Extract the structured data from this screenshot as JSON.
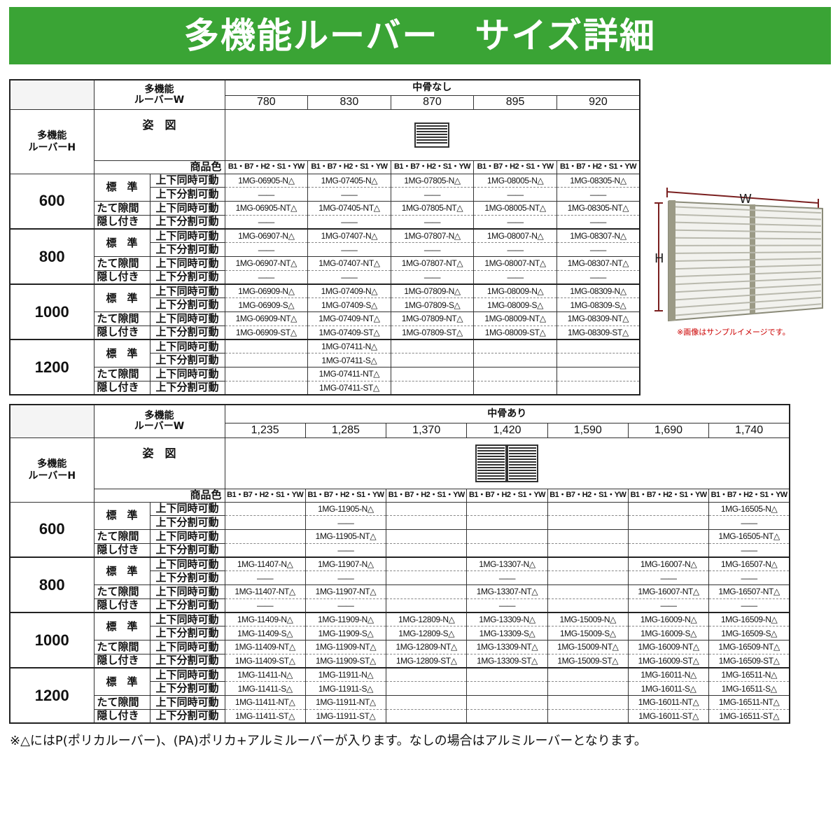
{
  "header": {
    "title": "多機能ルーバー　サイズ詳細"
  },
  "tables": [
    {
      "corner_w": [
        "多機能",
        "ルーバーW"
      ],
      "corner_h": [
        "多機能",
        "ルーバーH"
      ],
      "group": "中骨なし",
      "widths": [
        "780",
        "830",
        "870",
        "895",
        "920"
      ],
      "figure_label": "姿　図",
      "color_label": "商品色",
      "colors": [
        "B1・B7・H2・S1・YW",
        "B1・B7・H2・S1・YW",
        "B1・B7・H2・S1・YW",
        "B1・B7・H2・S1・YW",
        "B1・B7・H2・S1・YW"
      ],
      "sections": [
        {
          "height": "600",
          "labels": [
            "標　準",
            "たて隙間",
            "隠し付き"
          ],
          "ops": [
            "上下同時可動",
            "上下分割可動",
            "上下同時可動",
            "上下分割可動"
          ],
          "rows": [
            [
              "1MG-06905-N△",
              "1MG-07405-N△",
              "1MG-07805-N△",
              "1MG-08005-N△",
              "1MG-08305-N△"
            ],
            [
              "——",
              "——",
              "——",
              "——",
              "——"
            ],
            [
              "1MG-06905-NT△",
              "1MG-07405-NT△",
              "1MG-07805-NT△",
              "1MG-08005-NT△",
              "1MG-08305-NT△"
            ],
            [
              "——",
              "——",
              "——",
              "——",
              "——"
            ]
          ]
        },
        {
          "height": "800",
          "labels": [
            "標　準",
            "たて隙間",
            "隠し付き"
          ],
          "ops": [
            "上下同時可動",
            "上下分割可動",
            "上下同時可動",
            "上下分割可動"
          ],
          "rows": [
            [
              "1MG-06907-N△",
              "1MG-07407-N△",
              "1MG-07807-N△",
              "1MG-08007-N△",
              "1MG-08307-N△"
            ],
            [
              "——",
              "——",
              "——",
              "——",
              "——"
            ],
            [
              "1MG-06907-NT△",
              "1MG-07407-NT△",
              "1MG-07807-NT△",
              "1MG-08007-NT△",
              "1MG-08307-NT△"
            ],
            [
              "——",
              "——",
              "——",
              "——",
              "——"
            ]
          ]
        },
        {
          "height": "1000",
          "labels": [
            "標　準",
            "たて隙間",
            "隠し付き"
          ],
          "ops": [
            "上下同時可動",
            "上下分割可動",
            "上下同時可動",
            "上下分割可動"
          ],
          "rows": [
            [
              "1MG-06909-N△",
              "1MG-07409-N△",
              "1MG-07809-N△",
              "1MG-08009-N△",
              "1MG-08309-N△"
            ],
            [
              "1MG-06909-S△",
              "1MG-07409-S△",
              "1MG-07809-S△",
              "1MG-08009-S△",
              "1MG-08309-S△"
            ],
            [
              "1MG-06909-NT△",
              "1MG-07409-NT△",
              "1MG-07809-NT△",
              "1MG-08009-NT△",
              "1MG-08309-NT△"
            ],
            [
              "1MG-06909-ST△",
              "1MG-07409-ST△",
              "1MG-07809-ST△",
              "1MG-08009-ST△",
              "1MG-08309-ST△"
            ]
          ]
        },
        {
          "height": "1200",
          "labels": [
            "標　準",
            "たて隙間",
            "隠し付き"
          ],
          "ops": [
            "上下同時可動",
            "上下分割可動",
            "上下同時可動",
            "上下分割可動"
          ],
          "rows": [
            [
              null,
              "1MG-07411-N△",
              null,
              null,
              null
            ],
            [
              null,
              "1MG-07411-S△",
              null,
              null,
              null
            ],
            [
              null,
              "1MG-07411-NT△",
              null,
              null,
              null
            ],
            [
              null,
              "1MG-07411-ST△",
              null,
              null,
              null
            ]
          ]
        }
      ]
    },
    {
      "corner_w": [
        "多機能",
        "ルーバーW"
      ],
      "corner_h": [
        "多機能",
        "ルーバーH"
      ],
      "group": "中骨あり",
      "widths": [
        "1,235",
        "1,285",
        "1,370",
        "1,420",
        "1,590",
        "1,690",
        "1,740"
      ],
      "figure_label": "姿　図",
      "color_label": "商品色",
      "colors": [
        "B1・B7・H2・S1・YW",
        "B1・B7・H2・S1・YW",
        "B1・B7・H2・S1・YW",
        "B1・B7・H2・S1・YW",
        "B1・B7・H2・S1・YW",
        "B1・B7・H2・S1・YW",
        "B1・B7・H2・S1・YW"
      ],
      "sections": [
        {
          "height": "600",
          "labels": [
            "標　準",
            "たて隙間",
            "隠し付き"
          ],
          "ops": [
            "上下同時可動",
            "上下分割可動",
            "上下同時可動",
            "上下分割可動"
          ],
          "rows": [
            [
              null,
              "1MG-11905-N△",
              null,
              null,
              null,
              null,
              "1MG-16505-N△"
            ],
            [
              null,
              "——",
              null,
              null,
              null,
              null,
              "——"
            ],
            [
              null,
              "1MG-11905-NT△",
              null,
              null,
              null,
              null,
              "1MG-16505-NT△"
            ],
            [
              null,
              "——",
              null,
              null,
              null,
              null,
              "——"
            ]
          ]
        },
        {
          "height": "800",
          "labels": [
            "標　準",
            "たて隙間",
            "隠し付き"
          ],
          "ops": [
            "上下同時可動",
            "上下分割可動",
            "上下同時可動",
            "上下分割可動"
          ],
          "rows": [
            [
              "1MG-11407-N△",
              "1MG-11907-N△",
              null,
              "1MG-13307-N△",
              null,
              "1MG-16007-N△",
              "1MG-16507-N△"
            ],
            [
              "——",
              "——",
              null,
              "——",
              null,
              "——",
              "——"
            ],
            [
              "1MG-11407-NT△",
              "1MG-11907-NT△",
              null,
              "1MG-13307-NT△",
              null,
              "1MG-16007-NT△",
              "1MG-16507-NT△"
            ],
            [
              "——",
              "——",
              null,
              "——",
              null,
              "——",
              "——"
            ]
          ]
        },
        {
          "height": "1000",
          "labels": [
            "標　準",
            "たて隙間",
            "隠し付き"
          ],
          "ops": [
            "上下同時可動",
            "上下分割可動",
            "上下同時可動",
            "上下分割可動"
          ],
          "rows": [
            [
              "1MG-11409-N△",
              "1MG-11909-N△",
              "1MG-12809-N△",
              "1MG-13309-N△",
              "1MG-15009-N△",
              "1MG-16009-N△",
              "1MG-16509-N△"
            ],
            [
              "1MG-11409-S△",
              "1MG-11909-S△",
              "1MG-12809-S△",
              "1MG-13309-S△",
              "1MG-15009-S△",
              "1MG-16009-S△",
              "1MG-16509-S△"
            ],
            [
              "1MG-11409-NT△",
              "1MG-11909-NT△",
              "1MG-12809-NT△",
              "1MG-13309-NT△",
              "1MG-15009-NT△",
              "1MG-16009-NT△",
              "1MG-16509-NT△"
            ],
            [
              "1MG-11409-ST△",
              "1MG-11909-ST△",
              "1MG-12809-ST△",
              "1MG-13309-ST△",
              "1MG-15009-ST△",
              "1MG-16009-ST△",
              "1MG-16509-ST△"
            ]
          ]
        },
        {
          "height": "1200",
          "labels": [
            "標　準",
            "たて隙間",
            "隠し付き"
          ],
          "ops": [
            "上下同時可動",
            "上下分割可動",
            "上下同時可動",
            "上下分割可動"
          ],
          "rows": [
            [
              "1MG-11411-N△",
              "1MG-11911-N△",
              null,
              null,
              null,
              "1MG-16011-N△",
              "1MG-16511-N△"
            ],
            [
              "1MG-11411-S△",
              "1MG-11911-S△",
              null,
              null,
              null,
              "1MG-16011-S△",
              "1MG-16511-S△"
            ],
            [
              "1MG-11411-NT△",
              "1MG-11911-NT△",
              null,
              null,
              null,
              "1MG-16011-NT△",
              "1MG-16511-NT△"
            ],
            [
              "1MG-11411-ST△",
              "1MG-11911-ST△",
              null,
              null,
              null,
              "1MG-16011-ST△",
              "1MG-16511-ST△"
            ]
          ]
        }
      ]
    }
  ],
  "diagram": {
    "w_label": "W",
    "h_label": "H",
    "caption": "※画像はサンプルイメージです。"
  },
  "footnote": "※△にはP(ポリカルーバー)、(PA)ポリカ+アルミルーバーが入ります。なしの場合はアルミルーバーとなります。"
}
